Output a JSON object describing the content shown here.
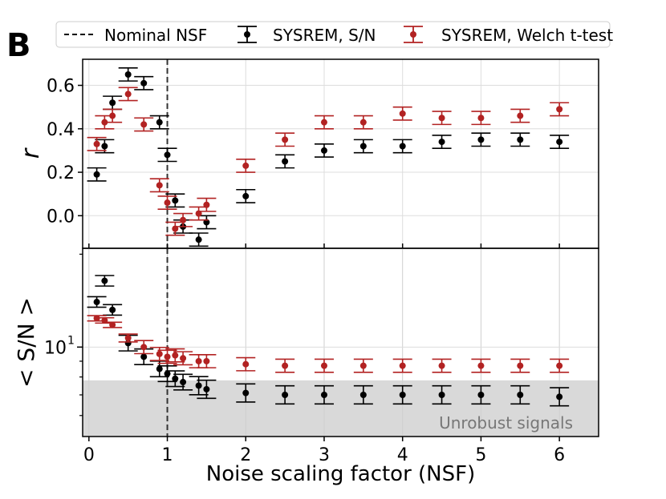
{
  "panel_label": "B",
  "legend": {
    "nominal": "Nominal NSF",
    "sn": "SYSREM, S/N",
    "welch": "SYSREM, Welch t-test"
  },
  "chart_data": {
    "type": "scatter",
    "x_label": "Noise scaling factor (NSF)",
    "x_ticks": [
      "0",
      "1",
      "2",
      "3",
      "4",
      "5",
      "6"
    ],
    "x_range": [
      -0.08,
      6.5
    ],
    "nominal_x": 1,
    "colors": {
      "sn": "#000000",
      "welch": "#b22222"
    },
    "top": {
      "y_label": "r",
      "y_range": [
        -0.15,
        0.72
      ],
      "y_ticks": [
        "0.0",
        "0.2",
        "0.4",
        "0.6"
      ],
      "series": [
        {
          "name": "SYSREM, S/N",
          "x": [
            0.1,
            0.2,
            0.3,
            0.5,
            0.7,
            0.9,
            1.0,
            1.1,
            1.2,
            1.4,
            1.5,
            2.0,
            2.5,
            3.0,
            3.5,
            4.0,
            4.5,
            5.0,
            5.5,
            6.0
          ],
          "y": [
            0.19,
            0.32,
            0.52,
            0.65,
            0.61,
            0.43,
            0.28,
            0.07,
            -0.05,
            -0.11,
            -0.03,
            0.09,
            0.25,
            0.3,
            0.32,
            0.32,
            0.34,
            0.35,
            0.35,
            0.34
          ],
          "err": [
            0.03,
            0.03,
            0.03,
            0.03,
            0.03,
            0.03,
            0.03,
            0.03,
            0.03,
            0.03,
            0.03,
            0.03,
            0.03,
            0.03,
            0.03,
            0.03,
            0.03,
            0.03,
            0.03,
            0.03
          ]
        },
        {
          "name": "SYSREM, Welch t-test",
          "x": [
            0.1,
            0.2,
            0.3,
            0.5,
            0.7,
            0.9,
            1.0,
            1.1,
            1.2,
            1.4,
            1.5,
            2.0,
            2.5,
            3.0,
            3.5,
            4.0,
            4.5,
            5.0,
            5.5,
            6.0
          ],
          "y": [
            0.33,
            0.43,
            0.46,
            0.56,
            0.42,
            0.14,
            0.06,
            -0.06,
            -0.02,
            0.01,
            0.05,
            0.23,
            0.35,
            0.43,
            0.43,
            0.47,
            0.45,
            0.45,
            0.46,
            0.49
          ],
          "err": [
            0.03,
            0.03,
            0.03,
            0.03,
            0.03,
            0.03,
            0.03,
            0.03,
            0.03,
            0.03,
            0.03,
            0.03,
            0.03,
            0.03,
            0.03,
            0.03,
            0.03,
            0.03,
            0.03,
            0.03
          ]
        }
      ]
    },
    "bottom": {
      "y_label": "< S/N >",
      "y_scale": "log",
      "y_range": [
        5.13,
        20.9
      ],
      "y_tick_label": "10",
      "y_tick_exp": "1",
      "y_tick_value": 10,
      "minor_ticks": [
        6,
        7,
        8,
        9,
        20
      ],
      "unrobust_threshold": 7.8,
      "unrobust_label": "Unrobust signals",
      "series": [
        {
          "name": "SYSREM, S/N",
          "x": [
            0.1,
            0.2,
            0.3,
            0.5,
            0.7,
            0.9,
            1.0,
            1.1,
            1.2,
            1.4,
            1.5,
            2.0,
            2.5,
            3.0,
            3.5,
            4.0,
            4.5,
            5.0,
            5.5,
            6.0
          ],
          "y": [
            14.0,
            16.4,
            13.2,
            10.3,
            9.3,
            8.5,
            8.2,
            7.9,
            7.7,
            7.5,
            7.3,
            7.1,
            7.0,
            7.0,
            7.0,
            7.0,
            7.0,
            7.0,
            7.0,
            6.9
          ],
          "err_factor": [
            1.04,
            1.04,
            1.04,
            1.06,
            1.06,
            1.06,
            1.06,
            1.06,
            1.06,
            1.07,
            1.07,
            1.07,
            1.07,
            1.07,
            1.07,
            1.07,
            1.07,
            1.07,
            1.07,
            1.07
          ]
        },
        {
          "name": "SYSREM, Welch t-test",
          "x": [
            0.1,
            0.2,
            0.3,
            0.5,
            0.7,
            0.9,
            1.0,
            1.1,
            1.2,
            1.4,
            1.5,
            2.0,
            2.5,
            3.0,
            3.5,
            4.0,
            4.5,
            5.0,
            5.5,
            6.0
          ],
          "y": [
            12.4,
            12.2,
            11.8,
            10.7,
            10.0,
            9.5,
            9.3,
            9.4,
            9.2,
            9.0,
            9.0,
            8.8,
            8.7,
            8.7,
            8.7,
            8.7,
            8.7,
            8.7,
            8.7,
            8.7
          ],
          "err_factor": [
            1.02,
            1.02,
            1.02,
            1.03,
            1.05,
            1.05,
            1.05,
            1.05,
            1.05,
            1.05,
            1.05,
            1.05,
            1.05,
            1.05,
            1.05,
            1.05,
            1.05,
            1.05,
            1.05,
            1.05
          ]
        }
      ]
    }
  }
}
